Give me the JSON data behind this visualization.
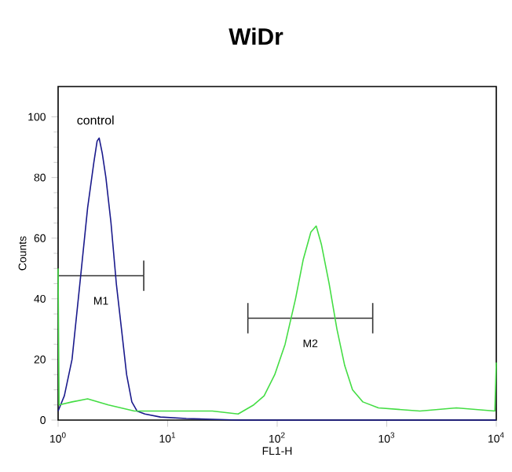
{
  "chart_data": {
    "type": "line",
    "title": "WiDr",
    "xlabel": "FL1-H",
    "ylabel": "Counts",
    "log": "x",
    "xlim": [
      1,
      10000
    ],
    "ylim": [
      0,
      110
    ],
    "xticks": [
      {
        "value": 1,
        "label": "10$^{0}$"
      },
      {
        "value": 10,
        "label": "10$^{1}$"
      },
      {
        "value": 100,
        "label": "10$^{2}$"
      },
      {
        "value": 1000,
        "label": "10$^{3}$"
      },
      {
        "value": 10000,
        "label": "10$^{4}$"
      }
    ],
    "yticks": [
      0,
      20,
      40,
      60,
      80,
      100
    ],
    "grid": false,
    "legend": false,
    "marker": "none",
    "line_style": "solid",
    "series": [
      {
        "name": "control",
        "color": "#1a1a8c",
        "x": [
          1,
          1.14,
          1.34,
          1.58,
          1.86,
          2.12,
          2.27,
          2.37,
          2.53,
          2.73,
          3.04,
          3.4,
          3.79,
          4.22,
          4.71,
          5.25,
          6.19,
          8.58,
          14.8,
          44,
          10000
        ],
        "values": [
          3,
          8,
          20,
          45,
          70,
          85,
          92,
          93,
          88,
          80,
          65,
          45,
          30,
          15,
          6,
          3,
          2,
          1,
          0.5,
          0,
          0
        ]
      },
      {
        "color": "#44dd44",
        "x": [
          1,
          1.02,
          1.34,
          1.86,
          2.88,
          4.97,
          8.58,
          14.8,
          25.6,
          44,
          61,
          76,
          95,
          118,
          147,
          173,
          203,
          227,
          253,
          298,
          351,
          413,
          487,
          605,
          840,
          2010,
          4320,
          9700,
          10000
        ],
        "values": [
          50,
          5,
          6,
          7,
          5,
          3,
          3,
          3,
          3,
          2,
          5,
          8,
          15,
          25,
          40,
          53,
          62,
          64,
          58,
          45,
          30,
          18,
          10,
          6,
          4,
          3,
          4,
          3,
          19
        ]
      },
      {
        "type": "line",
        "color": "#333333",
        "x": [
          1,
          6.05
        ],
        "values": [
          47.6,
          47.6
        ],
        "errors": [
          5,
          5
        ]
      },
      {
        "type": "line",
        "color": "#333333",
        "x": [
          54,
          745
        ],
        "values": [
          33.6,
          33.6
        ],
        "errors": [
          5,
          5
        ]
      }
    ],
    "annotations": [
      "M1",
      "M2"
    ]
  }
}
